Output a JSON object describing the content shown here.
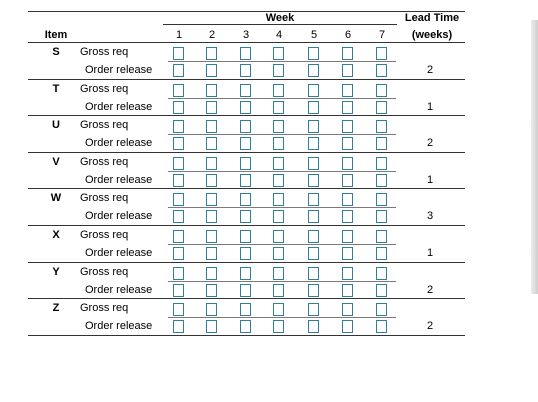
{
  "header": {
    "item": "Item",
    "week": "Week",
    "lead_time_line1": "Lead Time",
    "lead_time_line2": "(weeks)",
    "weeks": [
      "1",
      "2",
      "3",
      "4",
      "5",
      "6",
      "7"
    ]
  },
  "rows": [
    {
      "item": "S",
      "gross": "Gross req",
      "release": "Order release",
      "lead_time": "2"
    },
    {
      "item": "T",
      "gross": "Gross req",
      "release": "Order release",
      "lead_time": "1"
    },
    {
      "item": "U",
      "gross": "Gross req",
      "release": "Order release",
      "lead_time": "2"
    },
    {
      "item": "V",
      "gross": "Gross req",
      "release": "Order release",
      "lead_time": "1"
    },
    {
      "item": "W",
      "gross": "Gross req",
      "release": "Order release",
      "lead_time": "3"
    },
    {
      "item": "X",
      "gross": "Gross req",
      "release": "Order release",
      "lead_time": "1"
    },
    {
      "item": "Y",
      "gross": "Gross req",
      "release": "Order release",
      "lead_time": "2"
    },
    {
      "item": "Z",
      "gross": "Gross req",
      "release": "Order release",
      "lead_time": "2"
    }
  ],
  "colors": {
    "cell_border": "#2f7f96",
    "rule": "#333333"
  }
}
